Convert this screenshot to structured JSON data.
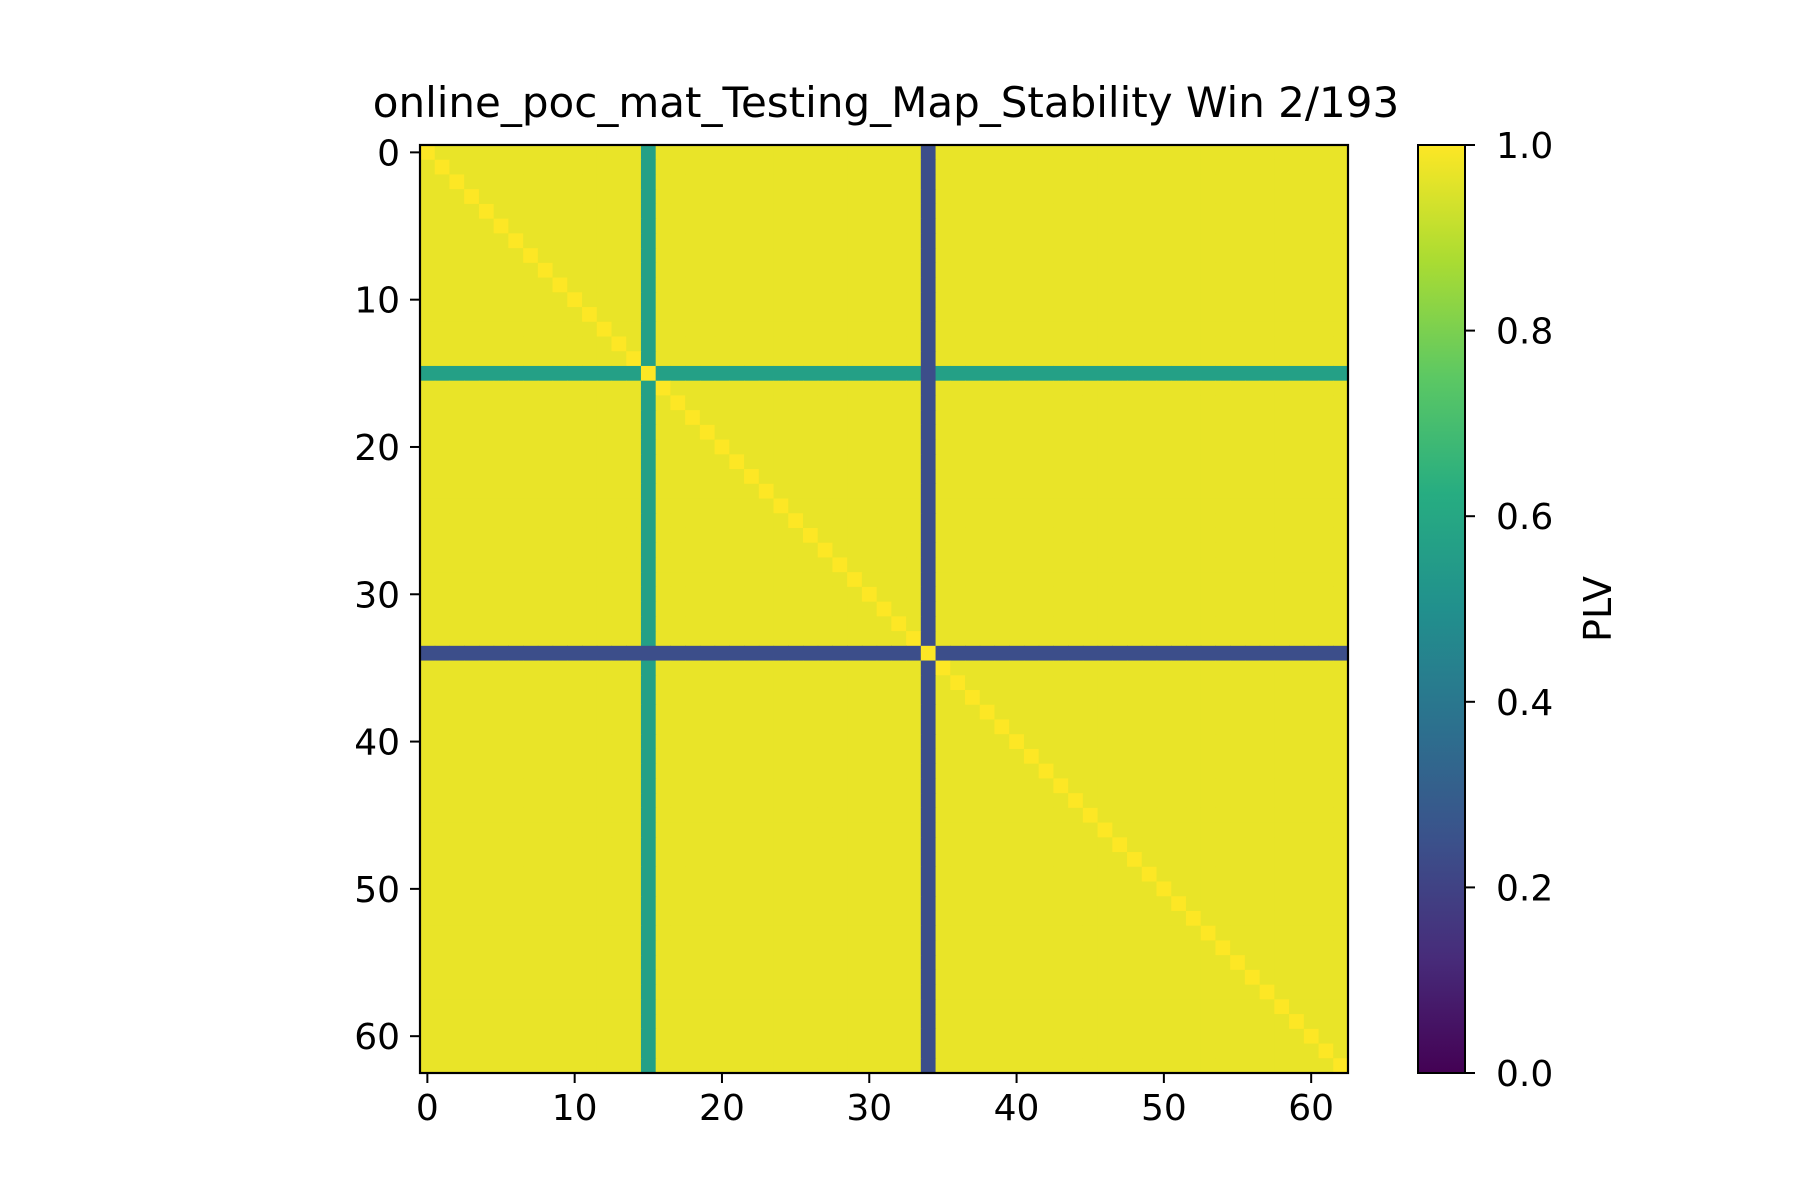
{
  "chart_data": {
    "type": "heatmap",
    "title": "online_poc_mat_Testing_Map_Stability Win 2/193",
    "xlabel": "",
    "ylabel": "",
    "n": 63,
    "xlim": [
      -0.5,
      62.5
    ],
    "ylim": [
      62.5,
      -0.5
    ],
    "x_ticks": [
      0,
      10,
      20,
      30,
      40,
      50,
      60
    ],
    "y_ticks": [
      0,
      10,
      20,
      30,
      40,
      50,
      60
    ],
    "colorbar": {
      "label": "PLV",
      "colormap": "viridis",
      "range": [
        0.0,
        1.0
      ],
      "ticks": [
        0.0,
        0.2,
        0.4,
        0.6,
        0.8,
        1.0
      ],
      "tick_labels": [
        "0.0",
        "0.2",
        "0.4",
        "0.6",
        "0.8",
        "1.0"
      ]
    },
    "background_value": 0.97,
    "cross_lines": [
      {
        "index": 15,
        "value": 0.57
      },
      {
        "index": 34,
        "value": 0.24
      }
    ],
    "cross_intersection_value": 0.24,
    "diagonal_value": 1.0,
    "grid": false
  }
}
